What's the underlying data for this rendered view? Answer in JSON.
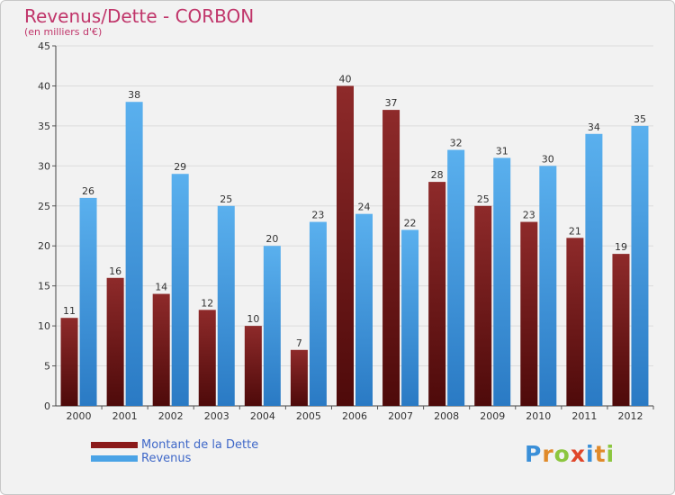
{
  "chart_data": {
    "type": "bar",
    "title": "Revenus/Dette - CORBON",
    "subtitle": "(en milliers d'€)",
    "categories": [
      "2000",
      "2001",
      "2002",
      "2003",
      "2004",
      "2005",
      "2006",
      "2007",
      "2008",
      "2009",
      "2010",
      "2011",
      "2012"
    ],
    "series": [
      {
        "name": "Montant de la Dette",
        "color": "#8b1a1a",
        "values": [
          11,
          16,
          14,
          12,
          10,
          7,
          40,
          37,
          28,
          25,
          23,
          21,
          19
        ]
      },
      {
        "name": "Revenus",
        "color": "#4aa3e6",
        "values": [
          26,
          38,
          29,
          25,
          20,
          23,
          24,
          22,
          32,
          31,
          30,
          34,
          35
        ]
      }
    ],
    "ylim": [
      0,
      45
    ],
    "yticks": [
      0,
      5,
      10,
      15,
      20,
      25,
      30,
      35,
      40,
      45
    ],
    "grid": true,
    "xlabel": "",
    "ylabel": "",
    "legend": "bottom-left"
  },
  "logo": {
    "letters": [
      "P",
      "r",
      "o",
      "x",
      "i",
      "t",
      "i"
    ],
    "colors": [
      "#3a8fd8",
      "#e08a2a",
      "#8cc63f",
      "#e0462a",
      "#3a8fd8",
      "#e08a2a",
      "#8cc63f"
    ]
  }
}
